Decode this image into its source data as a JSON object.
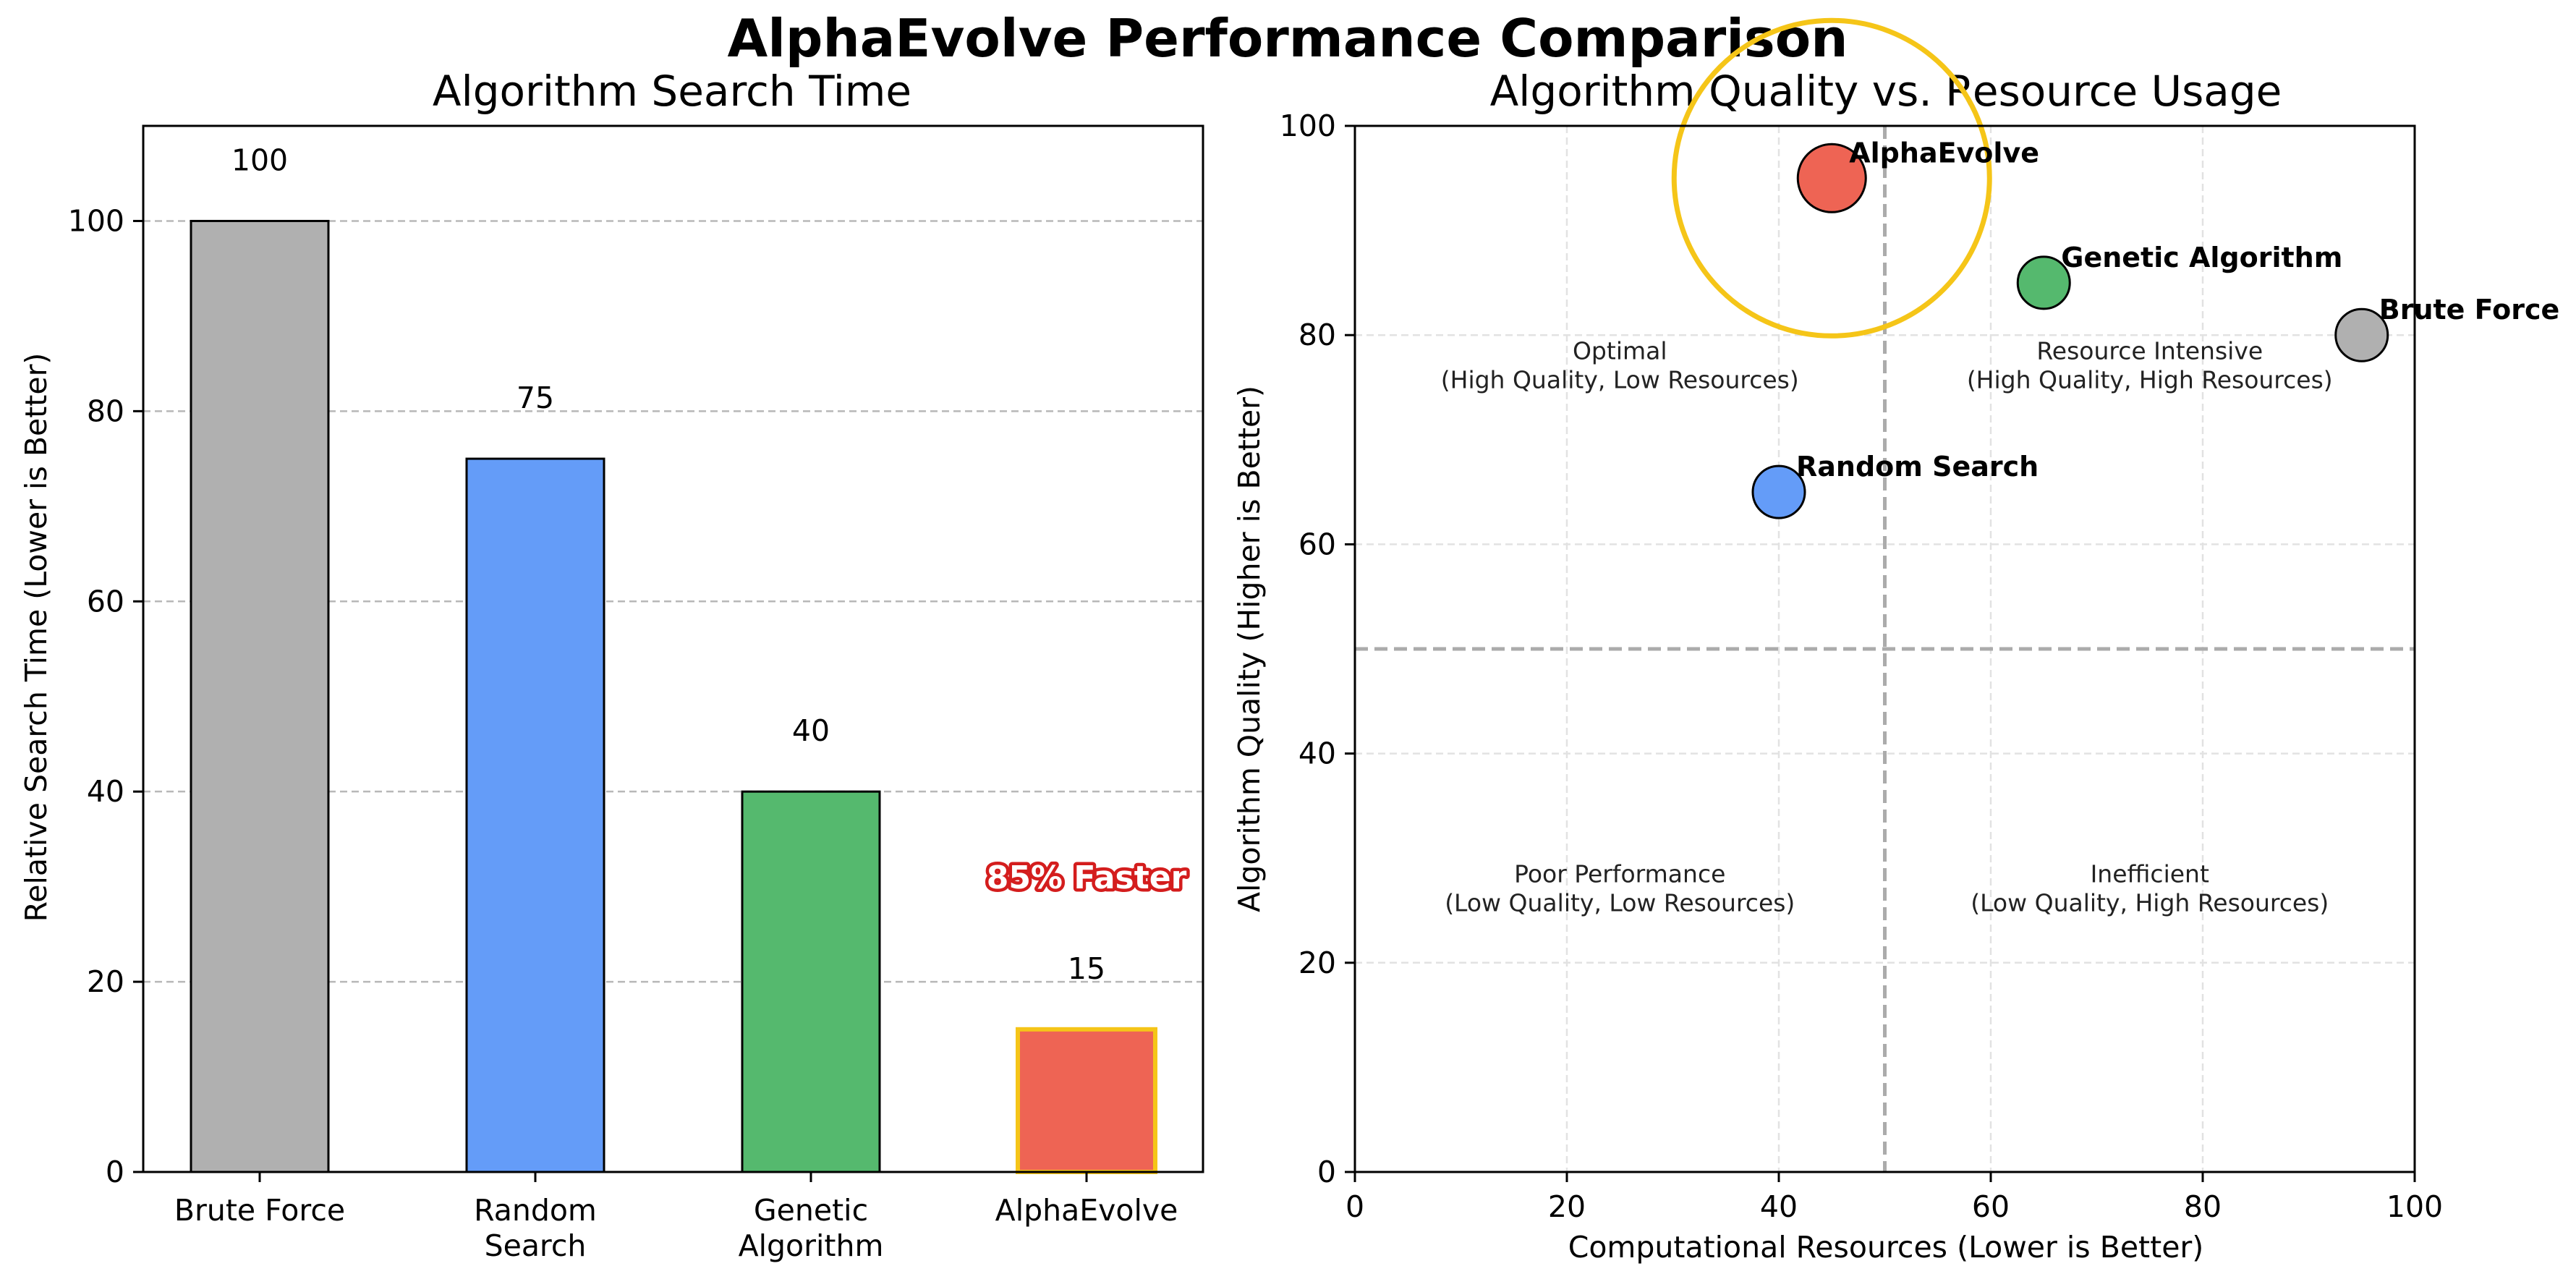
{
  "figure": {
    "title": "AlphaEvolve Performance Comparison"
  },
  "chart_data": [
    {
      "type": "bar",
      "title": "Algorithm Search Time",
      "xlabel": "",
      "ylabel": "Relative Search Time (Lower is Better)",
      "categories": [
        "Brute Force",
        "Random\nSearch",
        "Genetic\nAlgorithm",
        "AlphaEvolve"
      ],
      "values": [
        100,
        75,
        40,
        15
      ],
      "value_labels": [
        "100",
        "75",
        "40",
        "15"
      ],
      "colors": [
        "#b0b0b0",
        "#649cf8",
        "#55b96e",
        "#ee6454"
      ],
      "highlight": {
        "index": 3,
        "edge_color": "#f5c518",
        "annotation": "85% Faster"
      },
      "ylim": [
        0,
        110
      ],
      "yticks": [
        0,
        20,
        40,
        60,
        80,
        100
      ],
      "grid": "y"
    },
    {
      "type": "scatter",
      "title": "Algorithm Quality vs. Resource Usage",
      "xlabel": "Computational Resources (Lower is Better)",
      "ylabel": "Algorithm Quality (Higher is Better)",
      "xlim": [
        0,
        100
      ],
      "ylim": [
        0,
        100
      ],
      "xticks": [
        0,
        20,
        40,
        60,
        80,
        100
      ],
      "yticks": [
        0,
        20,
        40,
        60,
        80,
        100
      ],
      "grid": "both",
      "divider": {
        "x": 50,
        "y": 50
      },
      "points": [
        {
          "name": "Brute Force",
          "x": 95,
          "y": 80,
          "color": "#b0b0b0",
          "size": "small"
        },
        {
          "name": "Random Search",
          "x": 40,
          "y": 65,
          "color": "#649cf8",
          "size": "small"
        },
        {
          "name": "Genetic Algorithm",
          "x": 65,
          "y": 85,
          "color": "#55b96e",
          "size": "small"
        },
        {
          "name": "AlphaEvolve",
          "x": 45,
          "y": 95,
          "color": "#ee6454",
          "size": "large",
          "highlight_ring_color": "#f5c518"
        }
      ],
      "quadrants": [
        {
          "position": "top-left",
          "line1": "Optimal",
          "line2": "(High Quality, Low Resources)"
        },
        {
          "position": "top-right",
          "line1": "Resource Intensive",
          "line2": "(High Quality, High Resources)"
        },
        {
          "position": "bottom-left",
          "line1": "Poor Performance",
          "line2": "(Low Quality, Low Resources)"
        },
        {
          "position": "bottom-right",
          "line1": "Inefficient",
          "line2": "(Low Quality, High Resources)"
        }
      ]
    }
  ]
}
